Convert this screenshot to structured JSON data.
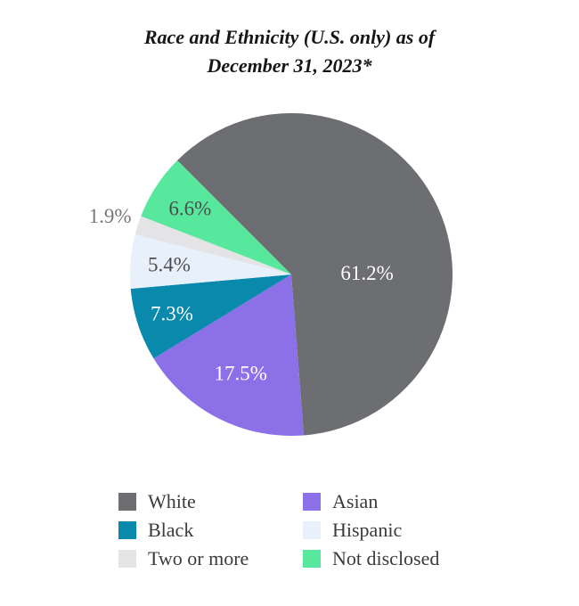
{
  "title": {
    "line1": "Race and Ethnicity (U.S. only) as of",
    "line2": "December 31, 2023*"
  },
  "chart_data": {
    "type": "pie",
    "title": "Race and Ethnicity (U.S. only) as of December 31, 2023*",
    "start_angle_deg": -45,
    "direction": "clockwise",
    "legend_position": "bottom",
    "legend_columns": 2,
    "slices": [
      {
        "label": "White",
        "value": 61.2,
        "display": "61.2%",
        "color": "#6d6e71",
        "label_color": "#ffffff",
        "label_inside": true,
        "label_radius": 0.47,
        "label_angle_deg": 89
      },
      {
        "label": "Asian",
        "value": 17.5,
        "display": "17.5%",
        "color": "#8b70e8",
        "label_color": "#ffffff",
        "label_inside": true,
        "label_radius": 0.69
      },
      {
        "label": "Black",
        "value": 7.3,
        "display": "7.3%",
        "color": "#0989ac",
        "label_color": "#ffffff",
        "label_inside": true,
        "label_radius": 0.78
      },
      {
        "label": "Hispanic",
        "value": 5.4,
        "display": "5.4%",
        "color": "#e7f0fb",
        "label_color": "#4d4d4f",
        "label_inside": true,
        "label_radius": 0.76
      },
      {
        "label": "Two or more",
        "value": 1.9,
        "display": "1.9%",
        "color": "#e4e4e6",
        "label_color": "#77787b",
        "label_inside": false,
        "label_radius": 1.18
      },
      {
        "label": "Not disclosed",
        "value": 6.6,
        "display": "6.6%",
        "color": "#57e79d",
        "label_color": "#4d4d4f",
        "label_inside": true,
        "label_radius": 0.75
      }
    ]
  }
}
